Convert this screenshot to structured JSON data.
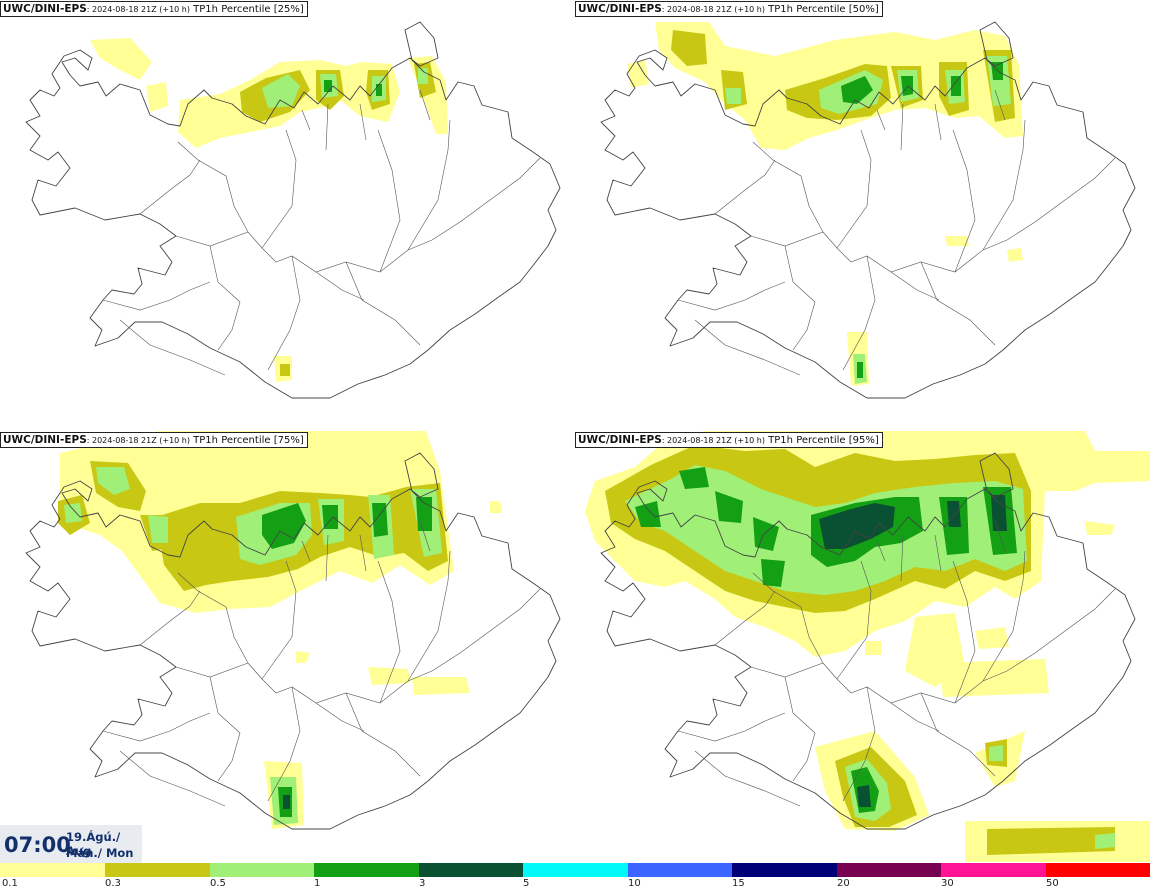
{
  "panels": [
    {
      "model": "UWC/DINI-EPS",
      "run": ": 2024-08-18 21Z (+10 h)",
      "product": "TP1h Percentile [25%]"
    },
    {
      "model": "UWC/DINI-EPS",
      "run": ": 2024-08-18 21Z (+10 h)",
      "product": "TP1h Percentile [50%]"
    },
    {
      "model": "UWC/DINI-EPS",
      "run": ": 2024-08-18 21Z (+10 h)",
      "product": "TP1h Percentile [75%]"
    },
    {
      "model": "UWC/DINI-EPS",
      "run": ": 2024-08-18 21Z (+10 h)",
      "product": "TP1h Percentile [95%]"
    }
  ],
  "valid_time": {
    "time": "07:00",
    "date_line": "19.Ágú./ Aug",
    "weekday_line": "Mán./ Mon"
  },
  "legend": {
    "labels": [
      "0.1",
      "0.3",
      "0.5",
      "1",
      "3",
      "5",
      "10",
      "15",
      "20",
      "30",
      "50"
    ],
    "colors": [
      "#ffff96",
      "#c8c814",
      "#a0f078",
      "#14a014",
      "#0a5032",
      "#00fafa",
      "#3c64ff",
      "#000078",
      "#780050",
      "#ff1496",
      "#ff0000"
    ]
  }
}
